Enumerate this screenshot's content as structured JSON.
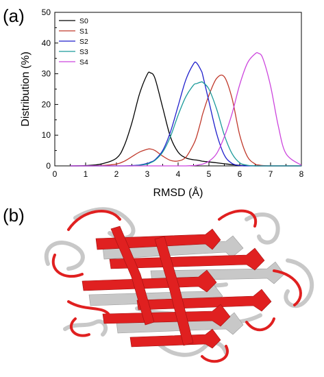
{
  "panels": {
    "a_label": "(a)",
    "b_label": "(b)"
  },
  "chart_data": {
    "type": "line",
    "title": "",
    "xlabel": "RMSD (Å)",
    "ylabel": "Distribution (%)",
    "xlim": [
      0,
      8
    ],
    "ylim": [
      0,
      50
    ],
    "xticks": [
      0,
      1,
      2,
      3,
      4,
      5,
      6,
      7,
      8
    ],
    "yticks": [
      0,
      10,
      20,
      30,
      40,
      50
    ],
    "grid": false,
    "legend_position": "top-left",
    "x": [
      0.5,
      1.0,
      1.5,
      2.0,
      2.25,
      2.5,
      2.75,
      3.0,
      3.1,
      3.25,
      3.5,
      3.75,
      4.0,
      4.25,
      4.5,
      4.6,
      4.75,
      4.8,
      5.0,
      5.25,
      5.5,
      5.75,
      6.0,
      6.25,
      6.5,
      6.6,
      6.75,
      7.0,
      7.25,
      7.5,
      8.0
    ],
    "series": [
      {
        "name": "S0",
        "color": "#000000",
        "values": [
          0.0,
          0.1,
          0.6,
          2.5,
          6.5,
          14.0,
          23.5,
          29.8,
          30.3,
          28.5,
          19.0,
          9.5,
          4.5,
          2.6,
          2.0,
          1.9,
          1.6,
          1.5,
          1.3,
          1.0,
          0.7,
          0.4,
          0.2,
          0.1,
          0.0,
          0.0,
          0.0,
          0.0,
          0.0,
          0.0,
          0.0
        ]
      },
      {
        "name": "S1",
        "color": "#c0392b",
        "values": [
          0.0,
          0.0,
          0.1,
          0.6,
          1.5,
          3.0,
          4.5,
          5.4,
          5.5,
          5.0,
          3.2,
          1.8,
          1.6,
          2.8,
          7.0,
          9.5,
          15.0,
          17.0,
          23.0,
          28.5,
          29.0,
          22.0,
          10.0,
          3.0,
          0.6,
          0.3,
          0.1,
          0.0,
          0.0,
          0.0,
          0.0
        ]
      },
      {
        "name": "S2",
        "color": "#1f1fcc",
        "values": [
          0.0,
          0.0,
          0.0,
          0.0,
          0.0,
          0.1,
          0.3,
          0.8,
          1.2,
          2.0,
          5.0,
          11.0,
          19.5,
          28.0,
          33.2,
          33.5,
          31.0,
          29.5,
          21.0,
          10.5,
          3.5,
          0.8,
          0.1,
          0.0,
          0.0,
          0.0,
          0.0,
          0.0,
          0.0,
          0.0,
          0.0
        ]
      },
      {
        "name": "S3",
        "color": "#1a9a9a",
        "values": [
          0.0,
          0.0,
          0.0,
          0.0,
          0.0,
          0.0,
          0.2,
          0.6,
          1.0,
          1.8,
          4.5,
          9.5,
          16.5,
          22.5,
          26.3,
          26.8,
          27.3,
          27.2,
          25.0,
          18.5,
          10.0,
          4.0,
          1.0,
          0.2,
          0.0,
          0.0,
          0.0,
          0.0,
          0.0,
          0.0,
          0.0
        ]
      },
      {
        "name": "S4",
        "color": "#cc44dd",
        "values": [
          0.0,
          0.0,
          0.0,
          0.0,
          0.0,
          0.0,
          0.0,
          0.0,
          0.0,
          0.0,
          0.0,
          0.0,
          0.0,
          0.0,
          0.1,
          0.2,
          0.5,
          0.6,
          1.5,
          4.0,
          9.5,
          17.0,
          26.5,
          33.5,
          36.5,
          36.7,
          35.0,
          26.0,
          13.0,
          4.0,
          0.2
        ]
      }
    ]
  },
  "structure_image": {
    "colors": {
      "aligned": "#e02020",
      "reference": "#c8c8c8"
    }
  }
}
